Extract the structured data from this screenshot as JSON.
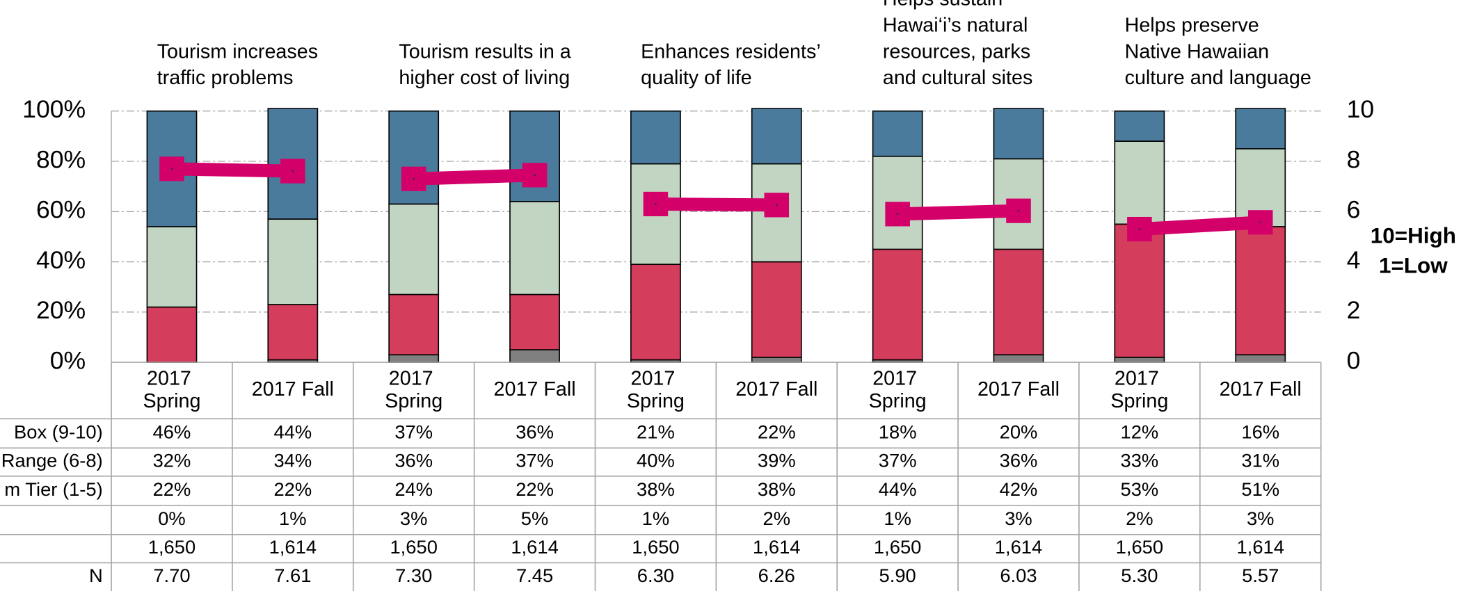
{
  "chart_data": {
    "type": "bar",
    "titles": [
      [
        "Tourism increases",
        "traffic problems"
      ],
      [
        "Tourism results in a",
        "higher cost of living"
      ],
      [
        "Enhances residents’",
        "quality of life"
      ],
      [
        "Helps sustain",
        "Hawai‘i’s natural",
        "resources, parks",
        "and cultural sites"
      ],
      [
        "Helps preserve",
        "Native Hawaiian",
        "culture and language"
      ]
    ],
    "categories": [
      "2017 Spring",
      "2017 Fall",
      "2017 Spring",
      "2017 Fall",
      "2017 Spring",
      "2017 Fall",
      "2017 Spring",
      "2017 Fall",
      "2017 Spring",
      "2017 Fall"
    ],
    "series": [
      {
        "name": "Box (9-10)",
        "color": "#4a7b9d",
        "values": [
          46,
          44,
          37,
          36,
          21,
          22,
          18,
          20,
          12,
          16
        ]
      },
      {
        "name": "Range (6-8)",
        "color": "#c2d5c2",
        "values": [
          32,
          34,
          36,
          37,
          40,
          39,
          37,
          36,
          33,
          31
        ]
      },
      {
        "name": "m Tier (1-5)",
        "color": "#d43d5b",
        "values": [
          22,
          22,
          24,
          22,
          38,
          38,
          44,
          42,
          53,
          51
        ]
      },
      {
        "name": null,
        "color": "#808080",
        "values": [
          0,
          1,
          3,
          5,
          1,
          2,
          1,
          3,
          2,
          3
        ]
      },
      {
        "name": null,
        "values": [
          1650,
          1614,
          1650,
          1614,
          1650,
          1614,
          1650,
          1614,
          1650,
          1614
        ],
        "value_labels": [
          "1,650",
          "1,614",
          "1,650",
          "1,614",
          "1,650",
          "1,614",
          "1,650",
          "1,614",
          "1,650",
          "1,614"
        ]
      },
      {
        "name": "N",
        "color": "#d4006a",
        "axis": "y2",
        "values": [
          7.7,
          7.61,
          7.3,
          7.45,
          6.3,
          6.26,
          5.9,
          6.03,
          5.3,
          5.57
        ],
        "value_labels": [
          "7.70",
          "7.61",
          "7.30",
          "7.45",
          "6.30",
          "6.26",
          "5.90",
          "6.03",
          "5.30",
          "5.57"
        ]
      }
    ],
    "ylim": [
      0,
      100
    ],
    "yticks": [
      {
        "value": 0,
        "label": "0%"
      },
      {
        "value": 20,
        "label": "20%"
      },
      {
        "value": 40,
        "label": "40%"
      },
      {
        "value": 60,
        "label": "60%"
      },
      {
        "value": 80,
        "label": "80%"
      },
      {
        "value": 100,
        "label": "100%"
      }
    ],
    "y2lim": [
      0,
      10
    ],
    "y2ticks": [
      0,
      2,
      4,
      6,
      8,
      10
    ],
    "annotations": [
      "10=High",
      "1=Low"
    ],
    "grid": true
  }
}
